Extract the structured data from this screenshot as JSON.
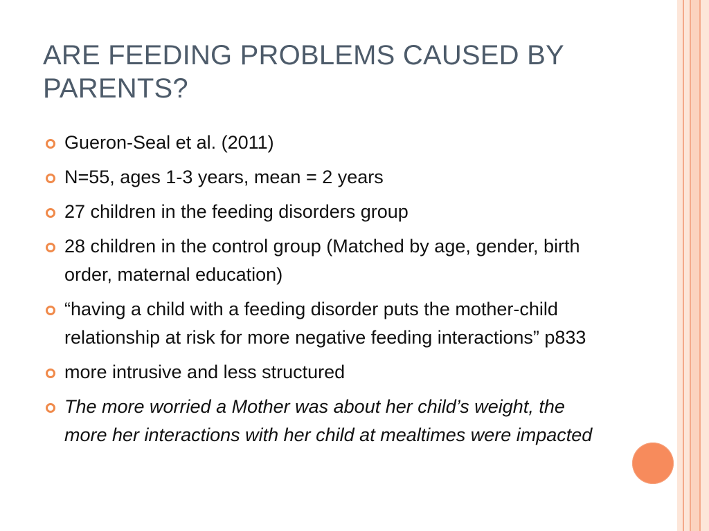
{
  "slide": {
    "title": "ARE FEEDING PROBLEMS CAUSED BY PARENTS?",
    "bullets": [
      {
        "text": "Gueron-Seal et al. (2011)",
        "italic": false
      },
      {
        "text": "N=55, ages 1-3 years, mean = 2 years",
        "italic": false
      },
      {
        "text": "27 children in the feeding disorders group",
        "italic": false
      },
      {
        "text": "28 children in the control group (Matched by age, gender, birth order, maternal education)",
        "italic": false
      },
      {
        "text": "“having a child with a feeding disorder puts the mother-child relationship at risk for more negative feeding interactions” p833",
        "italic": false
      },
      {
        "text": "more intrusive and less structured",
        "italic": false
      },
      {
        "text": "The more worried a Mother was about her child’s weight, the more her interactions with her child at mealtimes were impacted",
        "italic": true
      }
    ]
  },
  "theme": {
    "title_color": "#4d5b6a",
    "text_color": "#111111",
    "bullet_color": "#f08a4b",
    "accent_circle_color": "#f78b5c",
    "stripe_light": "#fde6d9",
    "stripe_dark": "#f4a98a"
  }
}
